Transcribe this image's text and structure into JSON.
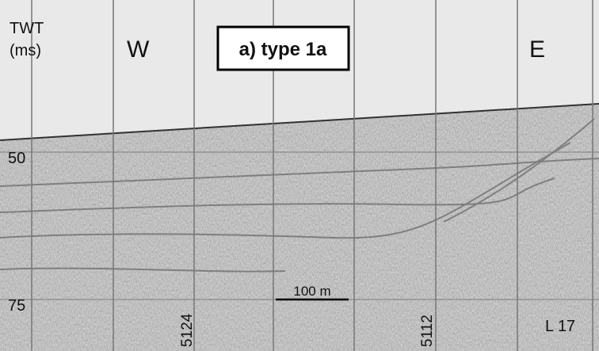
{
  "axis": {
    "title_lines": [
      "TWT",
      "(ms)"
    ],
    "ticks": [
      "50",
      "75"
    ]
  },
  "labels": {
    "west": "W",
    "east": "E",
    "panel": "a) type 1a",
    "scale_bar": "100 m",
    "line": "L 17"
  },
  "shotpoints": [
    "5124",
    "5112"
  ]
}
